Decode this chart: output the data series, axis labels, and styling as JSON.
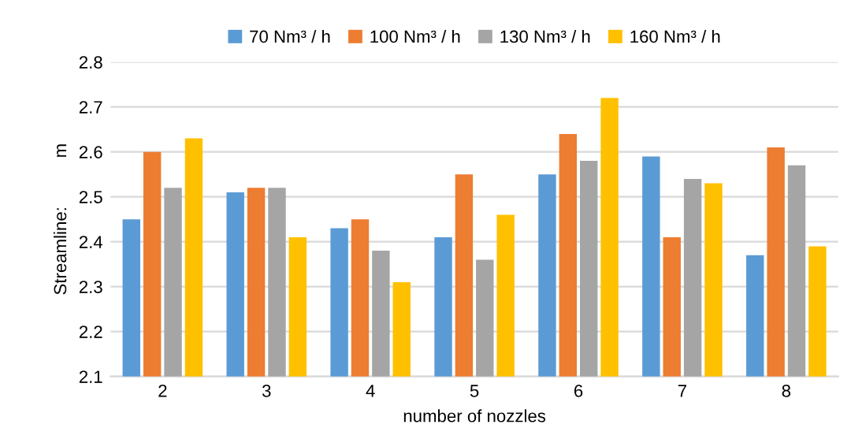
{
  "chart_data": {
    "type": "bar",
    "xlabel": "number of nozzles",
    "ylabel": "Streamline:          m",
    "categories": [
      "2",
      "3",
      "4",
      "5",
      "6",
      "7",
      "8"
    ],
    "series": [
      {
        "name": "70 Nm³ / h",
        "color": "#5b9bd5",
        "values": [
          2.45,
          2.51,
          2.43,
          2.41,
          2.55,
          2.59,
          2.37
        ]
      },
      {
        "name": "100 Nm³ / h",
        "color": "#ed7d31",
        "values": [
          2.6,
          2.52,
          2.45,
          2.55,
          2.64,
          2.41,
          2.61
        ]
      },
      {
        "name": "130 Nm³ / h",
        "color": "#a5a5a5",
        "values": [
          2.52,
          2.52,
          2.38,
          2.36,
          2.58,
          2.54,
          2.57
        ]
      },
      {
        "name": "160 Nm³ / h",
        "color": "#ffc000",
        "values": [
          2.63,
          2.41,
          2.31,
          2.46,
          2.72,
          2.53,
          2.39
        ]
      }
    ],
    "ylim": [
      2.1,
      2.8
    ],
    "yticks": [
      2.1,
      2.2,
      2.3,
      2.4,
      2.5,
      2.6,
      2.7,
      2.8
    ],
    "grid": "y",
    "legend": "top"
  }
}
